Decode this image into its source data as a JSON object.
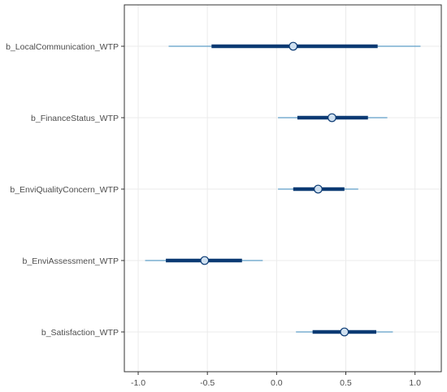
{
  "chart_data": {
    "type": "interval",
    "categories": [
      "b_LocalCommunication_WTP",
      "b_FinanceStatus_WTP",
      "b_EnviQualityConcern_WTP",
      "b_EnviAssessment_WTP",
      "b_Satisfaction_WTP"
    ],
    "series": [
      {
        "values": [
          {
            "label": "b_LocalCommunication_WTP",
            "point": 0.12,
            "inner": [
              -0.47,
              0.73
            ],
            "outer": [
              -0.78,
              1.04
            ]
          },
          {
            "label": "b_FinanceStatus_WTP",
            "point": 0.4,
            "inner": [
              0.15,
              0.66
            ],
            "outer": [
              0.01,
              0.8
            ]
          },
          {
            "label": "b_EnviQualityConcern_WTP",
            "point": 0.3,
            "inner": [
              0.12,
              0.49
            ],
            "outer": [
              0.01,
              0.59
            ]
          },
          {
            "label": "b_EnviAssessment_WTP",
            "point": -0.52,
            "inner": [
              -0.8,
              -0.25
            ],
            "outer": [
              -0.95,
              -0.1
            ]
          },
          {
            "label": "b_Satisfaction_WTP",
            "point": 0.49,
            "inner": [
              0.26,
              0.72
            ],
            "outer": [
              0.14,
              0.84
            ]
          }
        ]
      }
    ],
    "x_ticks": [
      -1.0,
      -0.5,
      0.0,
      0.5,
      1.0
    ],
    "x_tick_labels": [
      "-1.0",
      "-0.5",
      "0.0",
      "0.5",
      "1.0"
    ],
    "xlim": [
      -1.1,
      1.19
    ],
    "title": "",
    "xlabel": "",
    "ylabel": "",
    "grid": true,
    "colors": {
      "inner_interval": "#0b3a73",
      "outer_interval": "#5e9ec8",
      "point_fill": "#cfe0f0",
      "point_stroke": "#0b3a73",
      "grid": "#ebebeb",
      "panel_border": "#333333"
    }
  }
}
